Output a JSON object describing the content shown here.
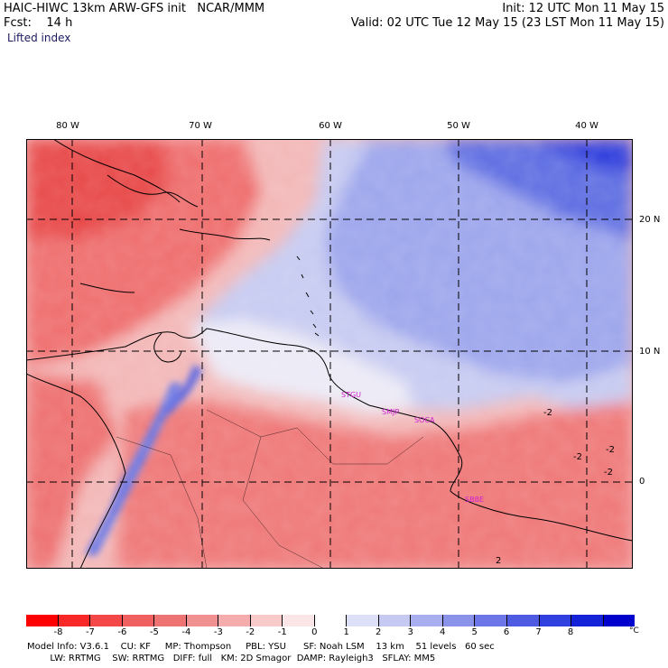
{
  "header": {
    "model_line": "HAIC-HIWC 13km ARW-GFS init   NCAR/MMM",
    "fcst_line": "Fcst:    14 h",
    "init_line": "Init: 12 UTC Mon 11 May 15",
    "valid_line": "Valid: 02 UTC Tue 12 May 15 (23 LST Mon 11 May 15)",
    "field_name": "Lifted index"
  },
  "map": {
    "lon_labels": [
      "80 W",
      "70 W",
      "60 W",
      "50 W",
      "40 W"
    ],
    "lat_labels": [
      "20 N",
      "10 N",
      "0"
    ],
    "contour_labels": [
      "-2",
      "-2",
      "-2",
      "-2",
      "2"
    ],
    "station_labels": [
      "STGU",
      "SMJP",
      "SOCA",
      "SBBE"
    ],
    "colors": {
      "negative_strong": "#e8141a",
      "negative_mid": "#f07070",
      "negative_light": "#f8b8b8",
      "neutral": "#f5f0f5",
      "positive_light": "#c8cdf2",
      "positive_mid": "#7a86e6",
      "positive_strong": "#2d3ddd",
      "station_label": "#d020d0"
    }
  },
  "colorbar": {
    "ticks": [
      "-8",
      "-7",
      "-6",
      "-5",
      "-4",
      "-3",
      "-2",
      "-1",
      "0",
      "1",
      "2",
      "3",
      "4",
      "5",
      "6",
      "7",
      "8"
    ],
    "unit": "°C",
    "colors": [
      "#ff0000",
      "#f82828",
      "#f44848",
      "#f06060",
      "#ee7474",
      "#f09090",
      "#f4acac",
      "#f8caca",
      "#fae6e6",
      "#ffffff",
      "#dde0f6",
      "#c6caf2",
      "#a8aeee",
      "#8a92ea",
      "#6c76e6",
      "#4e5ae2",
      "#3040de",
      "#1422d8",
      "#0000cc"
    ]
  },
  "footer": {
    "line1": "Model Info: V3.6.1    CU: KF     MP: Thompson     PBL: YSU      SF: Noah LSM    13 km    51 levels   60 sec",
    "line2": "        LW: RRTMG    SW: RRTMG   DIFF: full   KM: 2D Smagor  DAMP: Rayleigh3   SFLAY: MM5"
  }
}
